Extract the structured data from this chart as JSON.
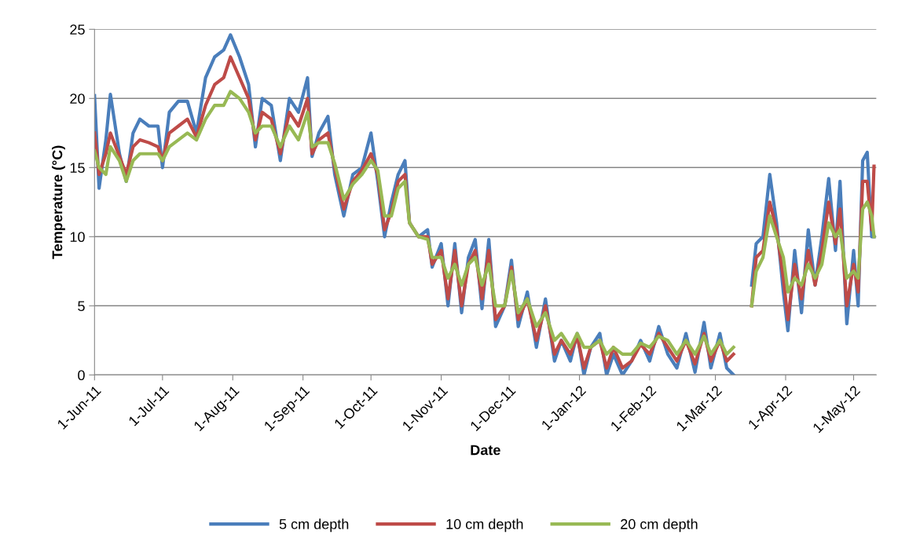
{
  "chart_data": {
    "type": "line",
    "xlabel": "Date",
    "ylabel": "Temperature (°C)",
    "x": [
      "2011-06-01",
      "2011-06-03",
      "2011-06-06",
      "2011-06-08",
      "2011-06-12",
      "2011-06-15",
      "2011-06-18",
      "2011-06-21",
      "2011-06-25",
      "2011-06-29",
      "2011-07-01",
      "2011-07-04",
      "2011-07-08",
      "2011-07-12",
      "2011-07-16",
      "2011-07-20",
      "2011-07-24",
      "2011-07-28",
      "2011-07-31",
      "2011-08-04",
      "2011-08-08",
      "2011-08-11",
      "2011-08-14",
      "2011-08-18",
      "2011-08-22",
      "2011-08-26",
      "2011-08-30",
      "2011-09-03",
      "2011-09-05",
      "2011-09-08",
      "2011-09-12",
      "2011-09-15",
      "2011-09-19",
      "2011-09-23",
      "2011-09-27",
      "2011-10-01",
      "2011-10-04",
      "2011-10-07",
      "2011-10-10",
      "2011-10-13",
      "2011-10-16",
      "2011-10-18",
      "2011-10-22",
      "2011-10-26",
      "2011-10-28",
      "2011-11-01",
      "2011-11-04",
      "2011-11-07",
      "2011-11-10",
      "2011-11-13",
      "2011-11-16",
      "2011-11-19",
      "2011-11-22",
      "2011-11-25",
      "2011-11-29",
      "2011-12-02",
      "2011-12-05",
      "2011-12-09",
      "2011-12-13",
      "2011-12-17",
      "2011-12-21",
      "2011-12-24",
      "2011-12-28",
      "2011-12-31",
      "2012-01-03",
      "2012-01-06",
      "2012-01-10",
      "2012-01-13",
      "2012-01-16",
      "2012-01-20",
      "2012-01-24",
      "2012-01-28",
      "2012-02-01",
      "2012-02-05",
      "2012-02-09",
      "2012-02-13",
      "2012-02-17",
      "2012-02-21",
      "2012-02-25",
      "2012-02-28",
      "2012-03-03",
      "2012-03-06",
      "2012-03-09",
      "2012-03-14",
      "2012-03-17",
      "2012-03-19",
      "2012-03-22",
      "2012-03-25",
      "2012-03-28",
      "2012-03-31",
      "2012-04-02",
      "2012-04-05",
      "2012-04-08",
      "2012-04-11",
      "2012-04-14",
      "2012-04-17",
      "2012-04-20",
      "2012-04-23",
      "2012-04-25",
      "2012-04-28",
      "2012-05-01",
      "2012-05-03",
      "2012-05-05",
      "2012-05-07",
      "2012-05-09",
      "2012-05-10"
    ],
    "series": [
      {
        "name": "5 cm depth",
        "color": "#4a7ebb",
        "values": [
          20.2,
          13.5,
          17.0,
          20.3,
          16.0,
          14.0,
          17.5,
          18.5,
          18.0,
          18.0,
          15.0,
          19.0,
          19.8,
          19.8,
          17.5,
          21.5,
          23.0,
          23.5,
          24.6,
          23.0,
          21.0,
          16.5,
          20.0,
          19.5,
          15.5,
          20.0,
          19.0,
          21.5,
          15.8,
          17.5,
          18.7,
          14.5,
          11.5,
          14.5,
          15.0,
          17.5,
          14.0,
          10.0,
          12.5,
          14.5,
          15.5,
          11.0,
          10.0,
          10.5,
          7.8,
          9.5,
          5.0,
          9.5,
          4.5,
          8.5,
          9.8,
          4.8,
          9.8,
          3.5,
          5.0,
          8.3,
          3.5,
          6.0,
          2.0,
          5.5,
          1.0,
          2.5,
          1.0,
          3.0,
          0.0,
          2.0,
          3.0,
          0.0,
          1.5,
          0.0,
          1.0,
          2.5,
          1.0,
          3.5,
          1.5,
          0.5,
          3.0,
          0.2,
          3.8,
          0.5,
          3.0,
          0.5,
          0.0,
          null,
          6.5,
          9.5,
          10.0,
          14.5,
          11.0,
          6.0,
          3.2,
          9.0,
          4.5,
          10.5,
          6.5,
          10.0,
          14.2,
          9.0,
          14.0,
          3.7,
          9.0,
          5.0,
          15.5,
          16.1,
          10.0,
          10.0
        ]
      },
      {
        "name": "10 cm depth",
        "color": "#be4b48",
        "values": [
          17.5,
          14.5,
          16.0,
          17.5,
          15.8,
          14.5,
          16.5,
          17.0,
          16.8,
          16.5,
          15.5,
          17.5,
          18.0,
          18.5,
          17.2,
          19.5,
          21.0,
          21.5,
          23.0,
          21.5,
          20.0,
          17.0,
          19.0,
          18.5,
          16.0,
          19.0,
          18.0,
          20.0,
          16.0,
          17.0,
          17.5,
          15.0,
          12.0,
          14.0,
          14.8,
          16.0,
          14.5,
          10.5,
          11.8,
          14.0,
          14.5,
          11.0,
          10.0,
          10.0,
          8.0,
          9.0,
          5.5,
          9.0,
          5.0,
          8.0,
          9.0,
          5.5,
          9.0,
          4.0,
          5.0,
          7.8,
          4.0,
          5.5,
          2.5,
          5.0,
          1.5,
          2.5,
          1.5,
          2.8,
          0.5,
          2.0,
          2.5,
          0.5,
          2.0,
          0.5,
          1.0,
          2.2,
          1.5,
          3.0,
          2.0,
          1.0,
          2.5,
          0.8,
          3.0,
          1.0,
          2.5,
          1.0,
          1.5,
          null,
          5.0,
          8.5,
          9.0,
          12.5,
          10.5,
          7.0,
          4.0,
          8.0,
          5.5,
          9.0,
          6.5,
          9.0,
          12.5,
          9.5,
          12.0,
          5.0,
          8.0,
          6.0,
          14.0,
          14.0,
          10.5,
          15.1
        ]
      },
      {
        "name": "20 cm depth",
        "color": "#98b954",
        "values": [
          16.2,
          15.0,
          14.5,
          16.5,
          15.5,
          14.0,
          15.5,
          16.0,
          16.0,
          16.0,
          15.5,
          16.5,
          17.0,
          17.5,
          17.0,
          18.5,
          19.5,
          19.5,
          20.5,
          20.0,
          19.0,
          17.5,
          18.0,
          18.0,
          16.5,
          18.0,
          17.0,
          19.0,
          16.5,
          16.8,
          16.8,
          15.3,
          12.7,
          13.8,
          14.5,
          15.5,
          14.8,
          11.5,
          11.5,
          13.5,
          14.0,
          11.0,
          10.0,
          9.8,
          8.5,
          8.5,
          7.0,
          8.0,
          6.5,
          8.0,
          8.5,
          6.5,
          8.0,
          5.0,
          5.0,
          7.5,
          4.5,
          5.5,
          3.5,
          4.5,
          2.5,
          3.0,
          2.0,
          3.0,
          2.0,
          2.0,
          2.5,
          1.5,
          2.0,
          1.5,
          1.5,
          2.3,
          2.0,
          2.8,
          2.5,
          1.5,
          2.5,
          1.5,
          2.8,
          1.5,
          2.5,
          1.5,
          2.0,
          null,
          5.0,
          7.5,
          8.5,
          11.5,
          10.0,
          8.5,
          6.0,
          7.0,
          6.5,
          8.0,
          7.0,
          8.0,
          11.0,
          10.0,
          10.5,
          7.0,
          7.5,
          7.0,
          12.0,
          12.5,
          11.5,
          10.0
        ]
      }
    ],
    "xlim": [
      "2011-06-01",
      "2012-05-11"
    ],
    "xticks": [
      {
        "value": "2011-06-01",
        "label": "1-Jun-11"
      },
      {
        "value": "2011-07-01",
        "label": "1-Jul-11"
      },
      {
        "value": "2011-08-01",
        "label": "1-Aug-11"
      },
      {
        "value": "2011-09-01",
        "label": "1-Sep-11"
      },
      {
        "value": "2011-10-01",
        "label": "1-Oct-11"
      },
      {
        "value": "2011-11-01",
        "label": "1-Nov-11"
      },
      {
        "value": "2011-12-01",
        "label": "1-Dec-11"
      },
      {
        "value": "2012-01-01",
        "label": "1-Jan-12"
      },
      {
        "value": "2012-02-01",
        "label": "1-Feb-12"
      },
      {
        "value": "2012-03-01",
        "label": "1-Mar-12"
      },
      {
        "value": "2012-04-01",
        "label": "1-Apr-12"
      },
      {
        "value": "2012-05-01",
        "label": "1-May-12"
      }
    ],
    "ylim": [
      0,
      25
    ],
    "yticks": [
      0,
      5,
      10,
      15,
      20,
      25
    ],
    "grid": "y",
    "legend": "bottom",
    "marker": "none",
    "line_style": "solid"
  }
}
